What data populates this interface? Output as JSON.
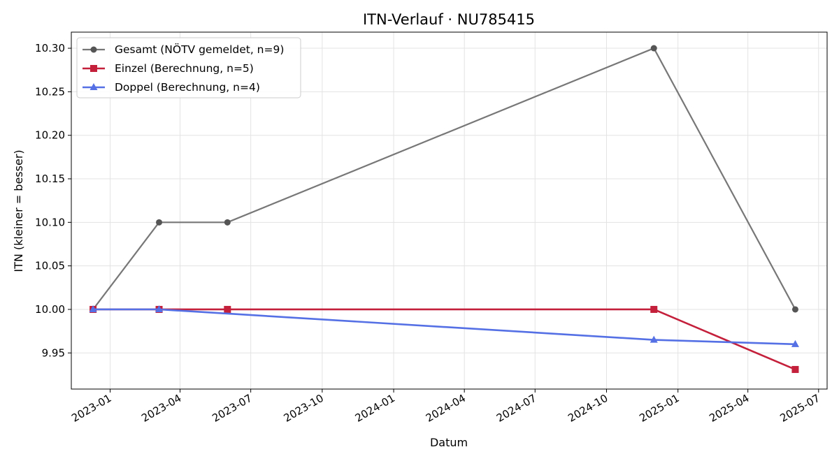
{
  "chart_data": {
    "type": "line",
    "title": "ITN-Verlauf · NU785415",
    "xlabel": "Datum",
    "ylabel": "ITN  (kleiner = besser)",
    "x_axis_type": "date",
    "xlim": [
      "2022-11-12",
      "2025-07-12"
    ],
    "ylim": [
      9.9085,
      10.3185
    ],
    "grid": true,
    "legend_position": "top-left",
    "x_ticks": [
      "2023-01",
      "2023-04",
      "2023-07",
      "2023-10",
      "2024-01",
      "2024-04",
      "2024-07",
      "2024-10",
      "2025-01",
      "2025-04",
      "2025-07"
    ],
    "y_ticks": [
      "9.95",
      "10.00",
      "10.05",
      "10.10",
      "10.15",
      "10.20",
      "10.25",
      "10.30"
    ],
    "series": [
      {
        "name": "Gesamt (NÖTV gemeldet, n=9)",
        "color": "#777777",
        "marker": "circle",
        "points": [
          {
            "x": "2022-12-10",
            "y": 10.0
          },
          {
            "x": "2023-03-05",
            "y": 10.1
          },
          {
            "x": "2023-06-01",
            "y": 10.1
          },
          {
            "x": "2024-12-01",
            "y": 10.3
          },
          {
            "x": "2025-06-01",
            "y": 10.0
          }
        ]
      },
      {
        "name": "Einzel (Berechnung, n=5)",
        "color": "#c41f3b",
        "marker": "square",
        "points": [
          {
            "x": "2022-12-10",
            "y": 10.0
          },
          {
            "x": "2023-03-05",
            "y": 10.0
          },
          {
            "x": "2023-06-01",
            "y": 10.0
          },
          {
            "x": "2024-12-01",
            "y": 10.0
          },
          {
            "x": "2025-06-01",
            "y": 9.931
          }
        ]
      },
      {
        "name": "Doppel (Berechnung, n=4)",
        "color": "#5470e4",
        "marker": "triangle",
        "points": [
          {
            "x": "2022-12-10",
            "y": 10.0
          },
          {
            "x": "2023-03-05",
            "y": 10.0
          },
          {
            "x": "2024-12-01",
            "y": 9.965
          },
          {
            "x": "2025-06-01",
            "y": 9.96
          }
        ]
      }
    ]
  }
}
